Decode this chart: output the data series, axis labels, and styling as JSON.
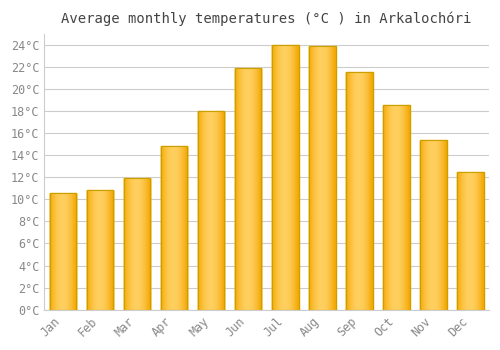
{
  "months": [
    "Jan",
    "Feb",
    "Mar",
    "Apr",
    "May",
    "Jun",
    "Jul",
    "Aug",
    "Sep",
    "Oct",
    "Nov",
    "Dec"
  ],
  "values": [
    10.6,
    10.8,
    11.9,
    14.8,
    18.0,
    21.9,
    24.0,
    23.9,
    21.5,
    18.5,
    15.4,
    12.5
  ],
  "bar_color_center": "#FFD060",
  "bar_color_edge": "#F5A800",
  "bar_border_color": "#C8A000",
  "title": "Average monthly temperatures (°C ) in Arkalochóri",
  "background_color": "#FFFFFF",
  "plot_bg_color": "#FFFFFF",
  "grid_color": "#CCCCCC",
  "tick_label_color": "#888888",
  "title_color": "#444444",
  "ylim": [
    0,
    25
  ],
  "ytick_max": 24,
  "ytick_step": 2,
  "title_fontsize": 10,
  "tick_fontsize": 8.5
}
